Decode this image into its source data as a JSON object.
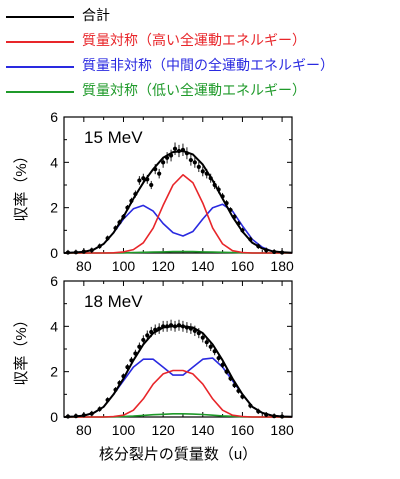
{
  "legend": {
    "items": [
      {
        "label": "合計",
        "color": "#000000"
      },
      {
        "label": "質量対称（高い全運動エネルギー）",
        "color": "#e8262a"
      },
      {
        "label": "質量非対称（中間の全運動エネルギー）",
        "color": "#2a2ae0"
      },
      {
        "label": "質量対称（低い全運動エネルギー）",
        "color": "#1f9a2a"
      }
    ]
  },
  "chart_data": [
    {
      "type": "line",
      "panel_label": "15 MeV",
      "ylabel": "収率（%）",
      "xlabel": "",
      "xlim": [
        70,
        185
      ],
      "ylim": [
        0,
        6
      ],
      "xticks": [
        80,
        100,
        120,
        140,
        160,
        180
      ],
      "yticks": [
        0,
        2,
        4,
        6
      ],
      "x": [
        70,
        75,
        80,
        85,
        90,
        95,
        100,
        105,
        110,
        115,
        120,
        125,
        130,
        135,
        140,
        145,
        150,
        155,
        160,
        165,
        170,
        175,
        180,
        185
      ],
      "series": [
        {
          "name": "合計",
          "color": "#000000",
          "values": [
            0.0,
            0.02,
            0.05,
            0.15,
            0.4,
            0.9,
            1.6,
            2.4,
            3.1,
            3.7,
            4.2,
            4.45,
            4.5,
            4.35,
            3.9,
            3.2,
            2.4,
            1.6,
            0.95,
            0.45,
            0.2,
            0.08,
            0.03,
            0.01
          ]
        },
        {
          "name": "質量対称（高い全運動エネルギー）",
          "color": "#e8262a",
          "values": [
            0,
            0,
            0,
            0,
            0,
            0.01,
            0.05,
            0.15,
            0.45,
            1.1,
            2.1,
            3.0,
            3.45,
            3.1,
            2.2,
            1.1,
            0.4,
            0.1,
            0.02,
            0,
            0,
            0,
            0,
            0
          ]
        },
        {
          "name": "質量非対称（中間の全運動エネルギー）",
          "color": "#2a2ae0",
          "values": [
            0.0,
            0.02,
            0.05,
            0.15,
            0.4,
            0.9,
            1.5,
            1.95,
            2.1,
            1.85,
            1.3,
            0.9,
            0.75,
            0.95,
            1.5,
            2.0,
            2.15,
            1.85,
            1.2,
            0.6,
            0.25,
            0.08,
            0.02,
            0.0
          ]
        },
        {
          "name": "質量対称（低い全運動エネルギー）",
          "color": "#1f9a2a",
          "values": [
            0,
            0,
            0,
            0,
            0,
            0,
            0.01,
            0.02,
            0.03,
            0.04,
            0.05,
            0.06,
            0.06,
            0.06,
            0.05,
            0.04,
            0.03,
            0.02,
            0.01,
            0,
            0,
            0,
            0,
            0
          ]
        }
      ],
      "data_points": {
        "x": [
          72,
          76,
          80,
          84,
          88,
          92,
          96,
          98,
          100,
          102,
          104,
          106,
          108,
          110,
          112,
          114,
          116,
          118,
          120,
          122,
          124,
          126,
          128,
          130,
          132,
          134,
          136,
          138,
          140,
          142,
          144,
          146,
          148,
          150,
          152,
          154,
          156,
          158,
          160,
          164,
          168,
          172,
          176,
          180
        ],
        "y": [
          0.02,
          0.03,
          0.06,
          0.12,
          0.3,
          0.65,
          1.1,
          1.35,
          1.6,
          2.0,
          2.3,
          2.6,
          3.2,
          3.3,
          3.25,
          3.0,
          3.7,
          3.5,
          4.0,
          4.2,
          4.3,
          4.6,
          4.5,
          4.55,
          4.4,
          4.1,
          4.0,
          3.8,
          3.6,
          3.5,
          3.3,
          3.0,
          2.8,
          2.5,
          2.2,
          1.9,
          1.6,
          1.3,
          1.0,
          0.6,
          0.3,
          0.12,
          0.05,
          0.02
        ]
      }
    },
    {
      "type": "line",
      "panel_label": "18 MeV",
      "ylabel": "収率（%）",
      "xlabel": "核分裂片の質量数（u）",
      "xlim": [
        70,
        185
      ],
      "ylim": [
        0,
        6
      ],
      "xticks": [
        80,
        100,
        120,
        140,
        160,
        180
      ],
      "yticks": [
        0,
        2,
        4,
        6
      ],
      "x": [
        70,
        75,
        80,
        85,
        90,
        95,
        100,
        105,
        110,
        115,
        120,
        125,
        130,
        135,
        140,
        145,
        150,
        155,
        160,
        165,
        170,
        175,
        180,
        185
      ],
      "series": [
        {
          "name": "合計",
          "color": "#000000",
          "values": [
            0.0,
            0.02,
            0.06,
            0.18,
            0.45,
            1.0,
            1.7,
            2.5,
            3.2,
            3.7,
            3.95,
            4.0,
            4.0,
            3.95,
            3.7,
            3.2,
            2.5,
            1.7,
            1.0,
            0.45,
            0.18,
            0.06,
            0.02,
            0.01
          ]
        },
        {
          "name": "質量対称（高い全運動エネルギー）",
          "color": "#e8262a",
          "values": [
            0,
            0,
            0,
            0,
            0,
            0.02,
            0.08,
            0.3,
            0.8,
            1.45,
            1.9,
            2.05,
            2.05,
            1.9,
            1.45,
            0.8,
            0.3,
            0.08,
            0.02,
            0,
            0,
            0,
            0,
            0
          ]
        },
        {
          "name": "質量非対称（中間の全運動エネルギー）",
          "color": "#2a2ae0",
          "values": [
            0.0,
            0.02,
            0.06,
            0.18,
            0.45,
            1.0,
            1.6,
            2.2,
            2.55,
            2.55,
            2.2,
            1.85,
            1.85,
            2.2,
            2.55,
            2.6,
            2.2,
            1.6,
            1.0,
            0.45,
            0.18,
            0.06,
            0.02,
            0.0
          ]
        },
        {
          "name": "質量対称（低い全運動エネルギー）",
          "color": "#1f9a2a",
          "values": [
            0,
            0,
            0,
            0,
            0,
            0.01,
            0.02,
            0.04,
            0.07,
            0.1,
            0.12,
            0.14,
            0.14,
            0.13,
            0.11,
            0.08,
            0.05,
            0.03,
            0.01,
            0,
            0,
            0,
            0,
            0
          ]
        }
      ],
      "data_points": {
        "x": [
          72,
          76,
          80,
          84,
          88,
          92,
          96,
          98,
          100,
          102,
          104,
          106,
          108,
          110,
          112,
          114,
          116,
          118,
          120,
          122,
          124,
          126,
          128,
          130,
          132,
          134,
          136,
          138,
          140,
          142,
          144,
          146,
          148,
          150,
          152,
          154,
          156,
          158,
          160,
          164,
          168,
          172,
          176,
          180
        ],
        "y": [
          0.02,
          0.04,
          0.08,
          0.15,
          0.35,
          0.75,
          1.2,
          1.5,
          1.8,
          2.2,
          2.5,
          2.8,
          3.1,
          3.4,
          3.6,
          3.75,
          3.85,
          3.9,
          4.0,
          4.0,
          4.05,
          4.0,
          4.05,
          4.0,
          3.95,
          3.9,
          3.8,
          3.7,
          3.5,
          3.3,
          3.1,
          2.9,
          2.6,
          2.3,
          2.0,
          1.7,
          1.4,
          1.15,
          0.9,
          0.5,
          0.25,
          0.1,
          0.04,
          0.02
        ]
      }
    }
  ]
}
